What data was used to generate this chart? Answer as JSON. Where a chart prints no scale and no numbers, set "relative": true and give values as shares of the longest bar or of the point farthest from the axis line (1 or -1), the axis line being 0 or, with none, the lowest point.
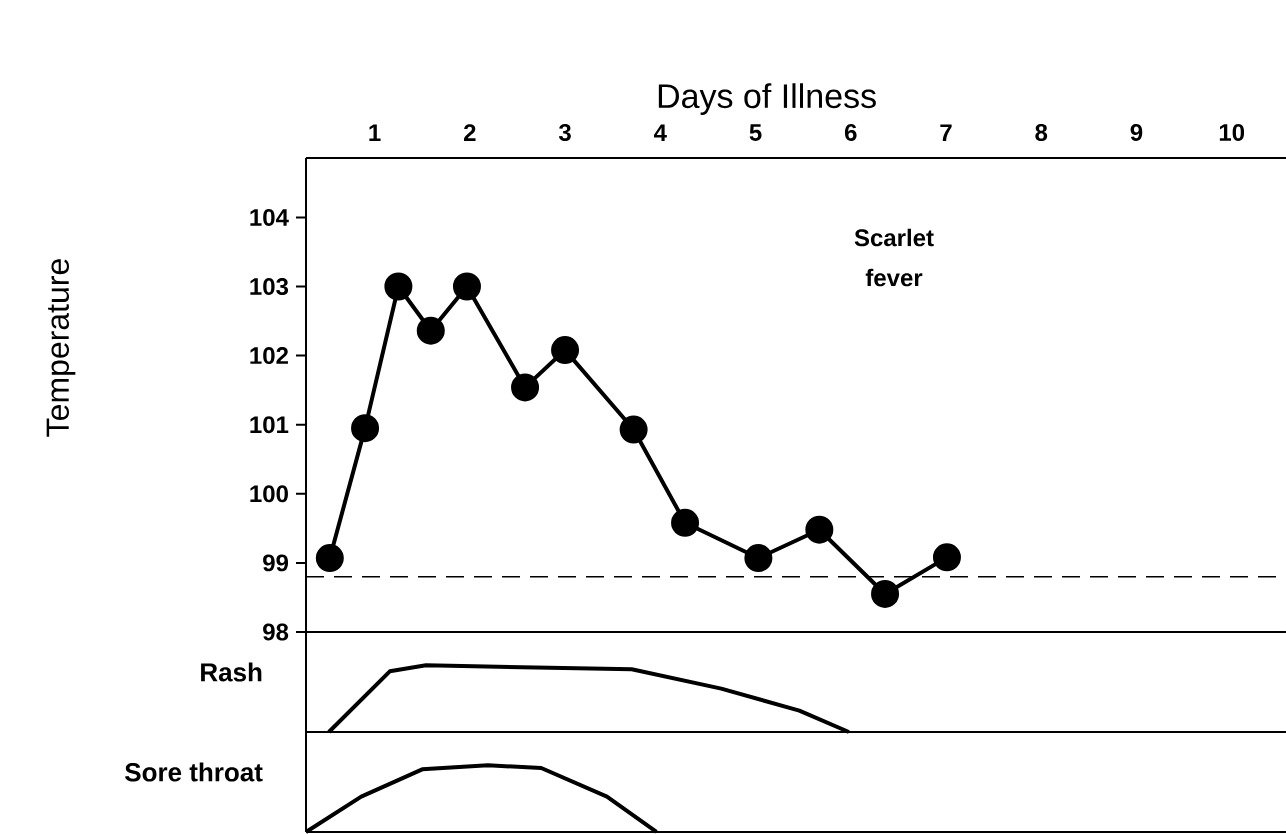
{
  "chart_data": [
    {
      "type": "line",
      "xlabel": "Days of Illness",
      "ylabel": "Temperature",
      "xlim": [
        0.28,
        10.57
      ],
      "ylim": [
        98,
        104.86
      ],
      "xticks": [
        1,
        2,
        3,
        4,
        5,
        6,
        7,
        8,
        9,
        10
      ],
      "yticks": [
        98,
        99,
        100,
        101,
        102,
        103,
        104
      ],
      "marker": "circle",
      "ref_lines": [
        {
          "axis": "y",
          "value": 98.8,
          "line_style": "dashed"
        }
      ],
      "series": [
        {
          "name": "Scarlet fever",
          "color": "#000000",
          "x": [
            0.53,
            0.9,
            1.25,
            1.59,
            1.97,
            2.58,
            3.0,
            3.72,
            4.26,
            5.03,
            5.67,
            6.36,
            7.01
          ],
          "values": [
            99.07,
            100.95,
            103.0,
            102.36,
            103.0,
            101.54,
            102.08,
            100.93,
            99.58,
            99.07,
            99.48,
            98.55,
            99.08
          ]
        }
      ]
    },
    {
      "type": "line",
      "relative": true,
      "ylabel": "Rash",
      "xlim": [
        0.28,
        10.57
      ],
      "marker": "none",
      "color": "#000000",
      "x": [
        0.52,
        1.16,
        1.54,
        3.7,
        4.64,
        5.46,
        5.98
      ],
      "values": [
        0,
        0.91,
        1,
        0.94,
        0.65,
        0.32,
        0
      ]
    },
    {
      "type": "line",
      "relative": true,
      "ylabel": "Sore throat",
      "xlim": [
        0.28,
        10.57
      ],
      "marker": "none",
      "color": "#000000",
      "x": [
        0.28,
        0.86,
        1.5,
        2.19,
        2.75,
        3.44,
        3.96
      ],
      "values": [
        0,
        0.53,
        0.94,
        1,
        0.96,
        0.53,
        0
      ]
    }
  ]
}
